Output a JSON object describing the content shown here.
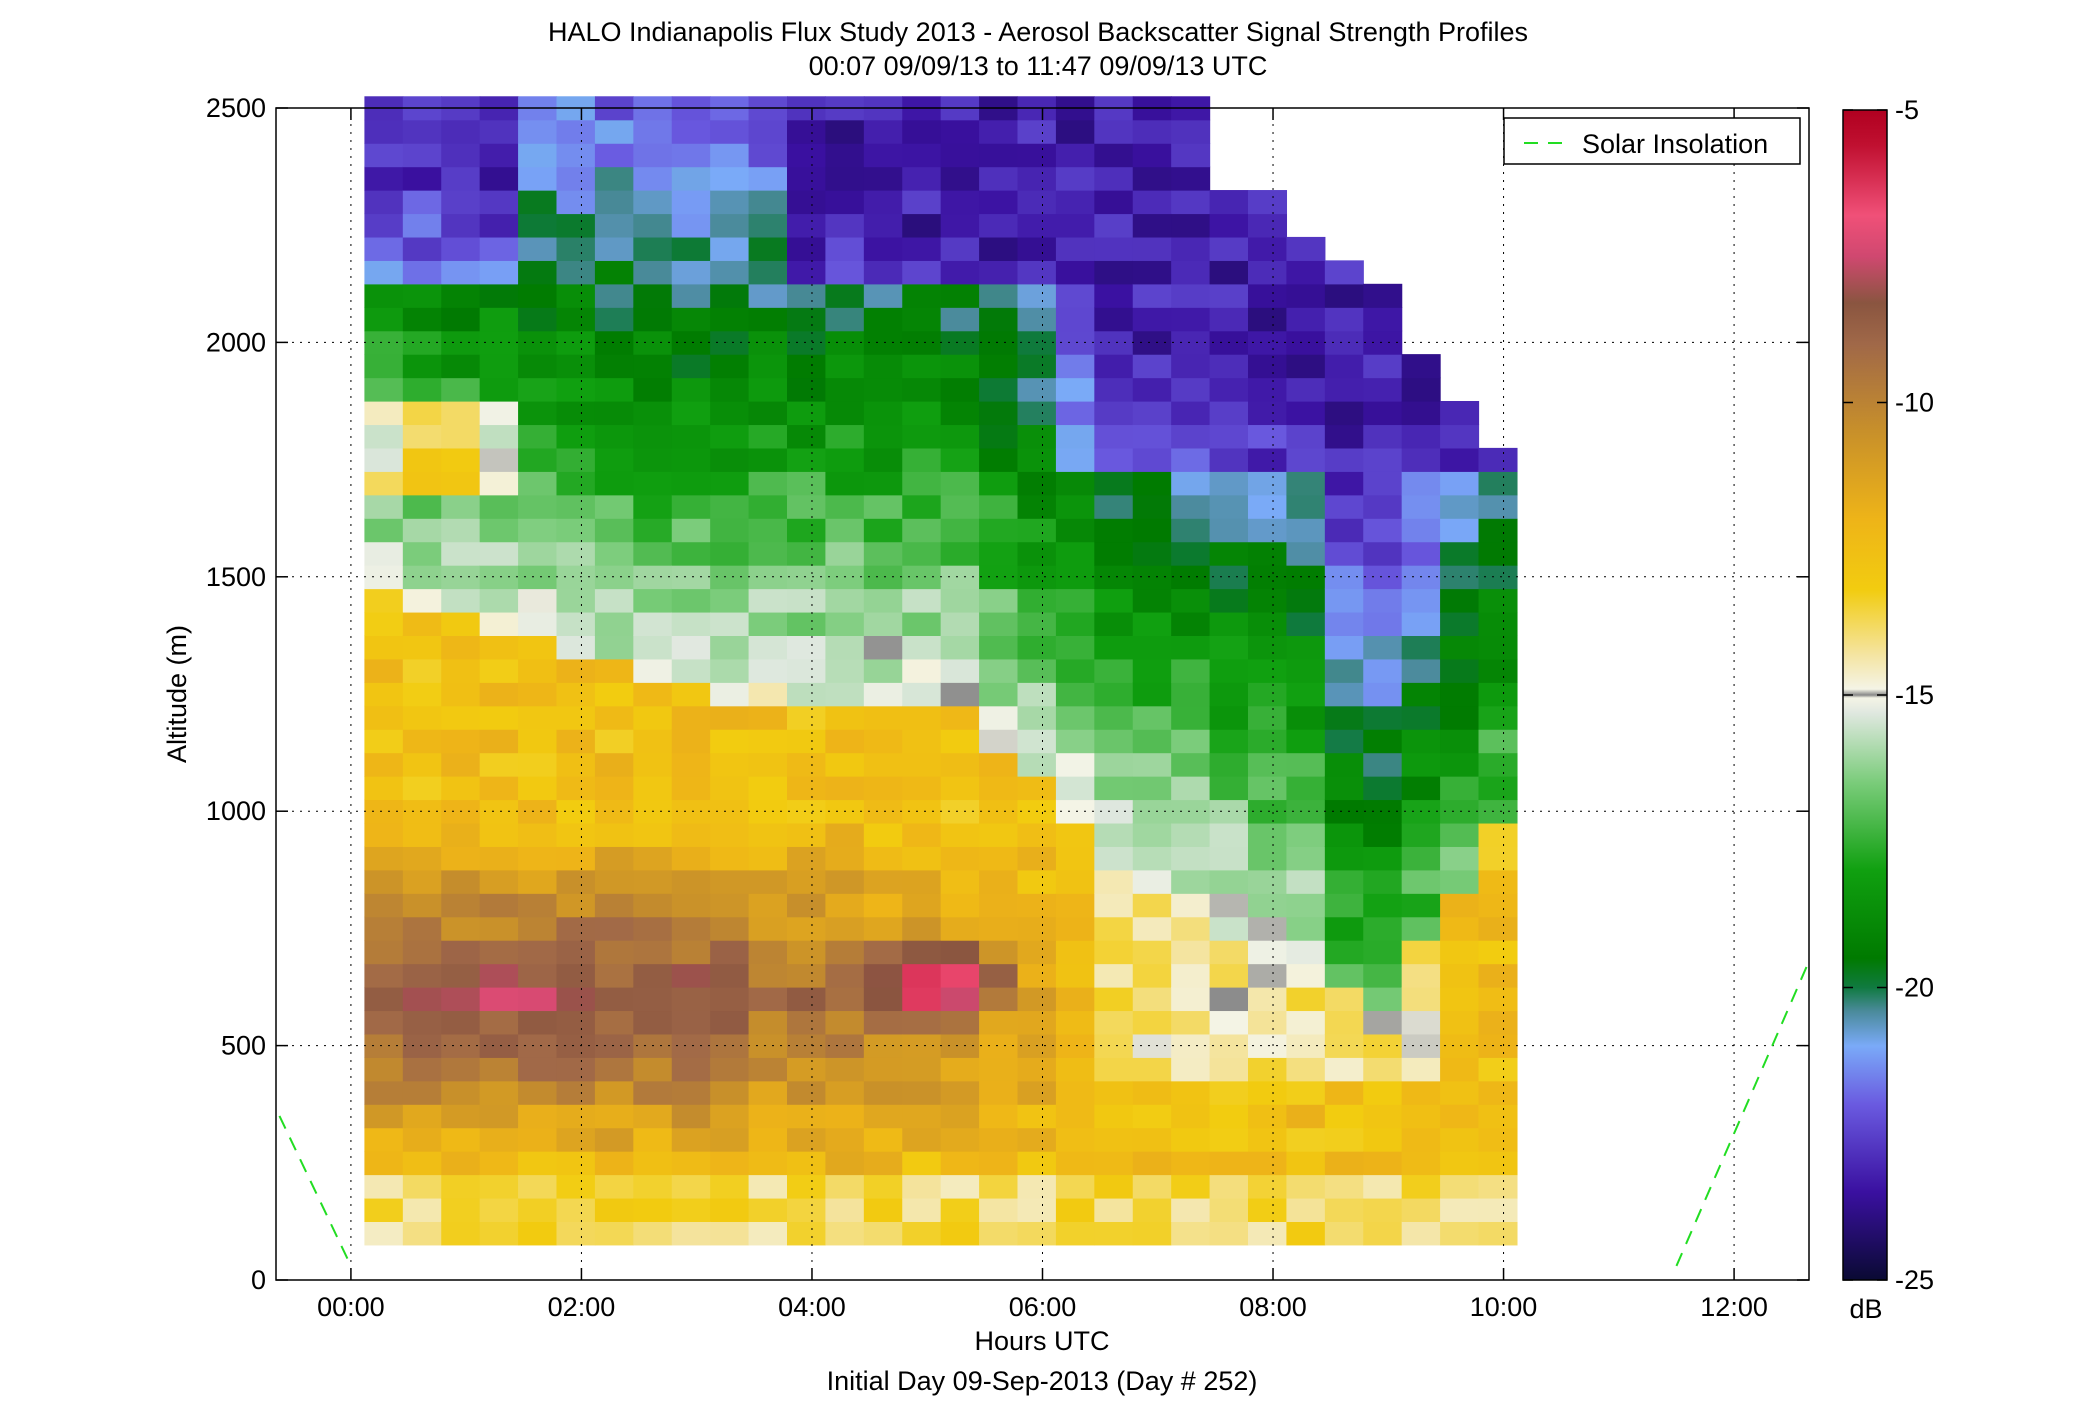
{
  "chart_data": {
    "type": "heatmap",
    "title": "HALO Indianapolis Flux Study 2013 - Aerosol Backscatter Signal Strength Profiles",
    "subtitle": "00:07 09/09/13 to 11:47 09/09/13  UTC",
    "xlabel": "Hours UTC",
    "xlabel2": "Initial Day 09-Sep-2013 (Day # 252)",
    "ylabel": "Altitude (m)",
    "xlim": [
      -0.65,
      12.65
    ],
    "ylim": [
      0,
      2500
    ],
    "x_ticks": [
      0,
      2,
      4,
      6,
      8,
      10,
      12
    ],
    "x_tick_labels": [
      "00:00",
      "02:00",
      "04:00",
      "06:00",
      "08:00",
      "10:00",
      "12:00"
    ],
    "y_ticks": [
      0,
      500,
      1000,
      1500,
      2000,
      2500
    ],
    "y_tick_labels": [
      "0",
      "500",
      "1000",
      "1500",
      "2000",
      "2500"
    ],
    "grid": "dotted",
    "legend": {
      "placement": "top-right",
      "entries": [
        "Solar Insolation"
      ]
    },
    "colorbar": {
      "label": "dB",
      "range": [
        -25,
        -5
      ],
      "ticks": [
        -5,
        -10,
        -15,
        -20,
        -25
      ],
      "tick_labels": [
        "-5",
        "-10",
        "-15",
        "-20",
        "-25"
      ],
      "stops": [
        {
          "v": -25,
          "color": "#0a0a33"
        },
        {
          "v": -23.5,
          "color": "#3a10a0"
        },
        {
          "v": -22,
          "color": "#6a5ae0"
        },
        {
          "v": -21,
          "color": "#7aaaf8"
        },
        {
          "v": -20.4,
          "color": "#4a8a9a"
        },
        {
          "v": -20,
          "color": "#107a40"
        },
        {
          "v": -19.5,
          "color": "#007a00"
        },
        {
          "v": -18,
          "color": "#10a010"
        },
        {
          "v": -16.5,
          "color": "#7acc7a"
        },
        {
          "v": -15.3,
          "color": "#e0e8e0"
        },
        {
          "v": -15.05,
          "color": "#f4f4e6"
        },
        {
          "v": -15,
          "color": "#888888"
        },
        {
          "v": -14.9,
          "color": "#f4f4e6"
        },
        {
          "v": -14.3,
          "color": "#f4e4a0"
        },
        {
          "v": -13.2,
          "color": "#f2cc10"
        },
        {
          "v": -12,
          "color": "#eeb418"
        },
        {
          "v": -10.5,
          "color": "#c8902a"
        },
        {
          "v": -9,
          "color": "#a06848"
        },
        {
          "v": -8.3,
          "color": "#8a5540"
        },
        {
          "v": -7.5,
          "color": "#d04870"
        },
        {
          "v": -6.8,
          "color": "#f05078"
        },
        {
          "v": -5.6,
          "color": "#c01030"
        },
        {
          "v": -5,
          "color": "#b00020"
        }
      ]
    },
    "grid_data": {
      "x_start": 0.117,
      "x_step": 0.3333,
      "columns": 30,
      "y_start": 75,
      "y_step": 50,
      "rows": 50,
      "cell_values_db": "field sampled from the rendered profile plot (see script)"
    },
    "series": [
      {
        "name": "Solar Insolation",
        "x": [
          -0.62,
          0.0,
          11.5,
          12.65
        ],
        "y": [
          350,
          30,
          30,
          680
        ]
      }
    ]
  }
}
